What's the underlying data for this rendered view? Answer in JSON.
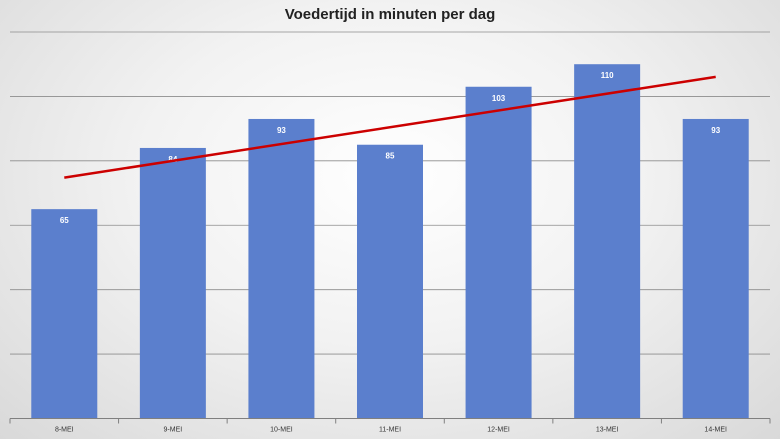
{
  "chart_data": {
    "type": "bar",
    "title": "Voedertijd in minuten per dag",
    "xlabel": "",
    "ylabel": "",
    "categories": [
      "8-MEI",
      "9-MEI",
      "10-MEI",
      "11-MEI",
      "12-MEI",
      "13-MEI",
      "14-MEI"
    ],
    "series": [
      {
        "values": [
          65,
          84,
          93,
          85,
          103,
          110,
          93
        ]
      }
    ],
    "trendline": {
      "type": "linear",
      "color": "#cc0000"
    },
    "ylim": [
      0,
      120
    ],
    "grid": true,
    "legend": "none",
    "colors": {
      "bar": "#5b7fcd",
      "bar_label": "#ffffff",
      "gridline": "#8c8c8c",
      "axis": "#7f7f7f"
    }
  }
}
